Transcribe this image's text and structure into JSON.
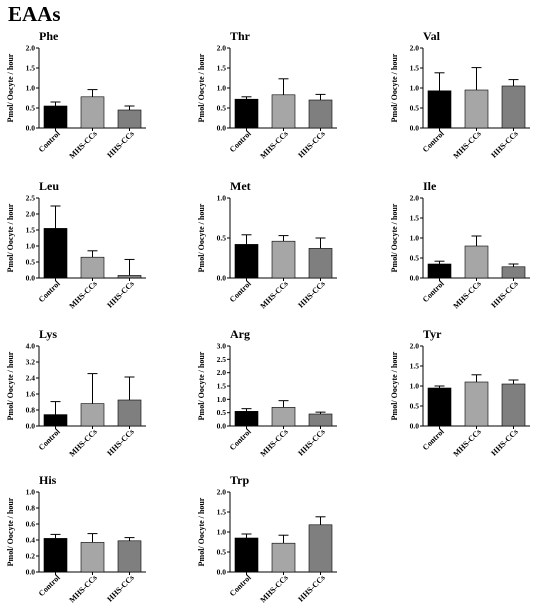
{
  "page_title": "EAAs",
  "categories": [
    "Control",
    "MHS-CCs",
    "HHS-CCs"
  ],
  "colors": {
    "Control": "#000000",
    "MHS-CCs": "#a6a6a6",
    "HHS-CCs": "#7f7f7f"
  },
  "chart_data": [
    {
      "type": "bar",
      "title": "Phe",
      "ylabel": "Pmol/ Oocyte / hour",
      "categories": [
        "Control",
        "MHS-CCs",
        "HHS-CCs"
      ],
      "values": [
        0.55,
        0.78,
        0.45
      ],
      "errors": [
        0.1,
        0.18,
        0.1
      ],
      "ylim": [
        0,
        2.0
      ],
      "yticks": [
        "0.0",
        "0.5",
        "1.0",
        "1.5",
        "2.0"
      ]
    },
    {
      "type": "bar",
      "title": "Thr",
      "ylabel": "Pmol/ Oocyte / hour",
      "categories": [
        "Control",
        "MHS-CCs",
        "HHS-CCs"
      ],
      "values": [
        0.72,
        0.83,
        0.7
      ],
      "errors": [
        0.06,
        0.4,
        0.14
      ],
      "ylim": [
        0,
        2.0
      ],
      "yticks": [
        "0.0",
        "0.5",
        "1.0",
        "1.5",
        "2.0"
      ]
    },
    {
      "type": "bar",
      "title": "Val",
      "ylabel": "Pmol/ Oocyte / hour",
      "categories": [
        "Control",
        "MHS-CCs",
        "HHS-CCs"
      ],
      "values": [
        0.93,
        0.95,
        1.05
      ],
      "errors": [
        0.45,
        0.56,
        0.16
      ],
      "ylim": [
        0,
        2.0
      ],
      "yticks": [
        "0.0",
        "0.5",
        "1.0",
        "1.5",
        "2.0"
      ]
    },
    {
      "type": "bar",
      "title": "Leu",
      "ylabel": "Pmol/ Oocyte / hour",
      "categories": [
        "Control",
        "MHS-CCs",
        "HHS-CCs"
      ],
      "values": [
        1.55,
        0.65,
        0.08
      ],
      "errors": [
        0.7,
        0.2,
        0.5
      ],
      "ylim": [
        0,
        2.5
      ],
      "yticks": [
        "0.0",
        "0.5",
        "1.0",
        "1.5",
        "2.0",
        "2.5"
      ]
    },
    {
      "type": "bar",
      "title": "Met",
      "ylabel": "Pmol/ Oocyte / hour",
      "categories": [
        "Control",
        "MHS-CCs",
        "HHS-CCs"
      ],
      "values": [
        0.42,
        0.46,
        0.37
      ],
      "errors": [
        0.12,
        0.07,
        0.13
      ],
      "ylim": [
        0,
        1.0
      ],
      "yticks": [
        "0.0",
        "0.5",
        "1.0"
      ]
    },
    {
      "type": "bar",
      "title": "Ile",
      "ylabel": "Pmol/ Oocyte / hour",
      "categories": [
        "Control",
        "MHS-CCs",
        "HHS-CCs"
      ],
      "values": [
        0.35,
        0.8,
        0.28
      ],
      "errors": [
        0.07,
        0.25,
        0.07
      ],
      "ylim": [
        0,
        2.0
      ],
      "yticks": [
        "0.0",
        "0.5",
        "1.0",
        "1.5",
        "2.0"
      ]
    },
    {
      "type": "bar",
      "title": "Lys",
      "ylabel": "Pmol/ Oocyte / hour",
      "categories": [
        "Control",
        "MHS-CCs",
        "HHS-CCs"
      ],
      "values": [
        0.57,
        1.12,
        1.3
      ],
      "errors": [
        0.65,
        1.5,
        1.15
      ],
      "ylim": [
        0,
        4.0
      ],
      "yticks": [
        "0.0",
        "0.8",
        "1.6",
        "2.4",
        "3.2",
        "4.0"
      ]
    },
    {
      "type": "bar",
      "title": "Arg",
      "ylabel": "Pmol/ Oocyte / hour",
      "categories": [
        "Control",
        "MHS-CCs",
        "HHS-CCs"
      ],
      "values": [
        0.55,
        0.7,
        0.45
      ],
      "errors": [
        0.1,
        0.25,
        0.07
      ],
      "ylim": [
        0,
        3.0
      ],
      "yticks": [
        "0.0",
        "0.5",
        "1.0",
        "1.5",
        "2.0",
        "2.5",
        "3.0"
      ]
    },
    {
      "type": "bar",
      "title": "Tyr",
      "ylabel": "Pmol/ Oocyte / hour",
      "categories": [
        "Control",
        "MHS-CCs",
        "HHS-CCs"
      ],
      "values": [
        0.95,
        1.1,
        1.05
      ],
      "errors": [
        0.05,
        0.18,
        0.1
      ],
      "ylim": [
        0,
        2.0
      ],
      "yticks": [
        "0.0",
        "0.5",
        "1.0",
        "1.5",
        "2.0"
      ]
    },
    {
      "type": "bar",
      "title": "His",
      "ylabel": "Pmol/ Oocyte / hour",
      "categories": [
        "Control",
        "MHS-CCs",
        "HHS-CCs"
      ],
      "values": [
        0.42,
        0.37,
        0.39
      ],
      "errors": [
        0.05,
        0.11,
        0.04
      ],
      "ylim": [
        0,
        1.0
      ],
      "yticks": [
        "0.0",
        "0.2",
        "0.4",
        "0.6",
        "0.8",
        "1.0"
      ]
    },
    {
      "type": "bar",
      "title": "Trp",
      "ylabel": "Pmol/ Oocyte / hour",
      "categories": [
        "Control",
        "MHS-CCs",
        "HHS-CCs"
      ],
      "values": [
        0.85,
        0.72,
        1.18
      ],
      "errors": [
        0.1,
        0.2,
        0.2
      ],
      "ylim": [
        0,
        2.0
      ],
      "yticks": [
        "0.0",
        "0.5",
        "1.0",
        "1.5",
        "2.0"
      ]
    }
  ]
}
